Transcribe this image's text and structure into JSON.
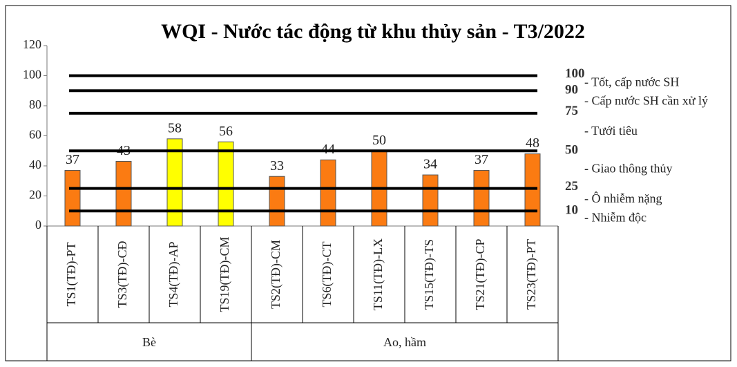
{
  "chart_data": {
    "type": "bar",
    "title": "WQI - Nước tác động từ khu thủy sản - T3/2022",
    "groups": [
      {
        "name": "Bè",
        "categories": [
          "TS1(TĐ)-PT",
          "TS3(TĐ)-CĐ",
          "TS4(TĐ)-AP",
          "TS19(TĐ)-CM"
        ]
      },
      {
        "name": "Ao, hầm",
        "categories": [
          "TS2(TĐ)-CM",
          "TS6(TĐ)-CT",
          "TS11(TĐ)-LX",
          "TS15(TĐ)-TS",
          "TS21(TĐ)-CP",
          "TS23(TĐ)-PT"
        ]
      }
    ],
    "values": [
      37,
      43,
      58,
      56,
      33,
      44,
      50,
      34,
      37,
      48
    ],
    "colors": [
      "#fb7b12",
      "#fb7b12",
      "#ffff00",
      "#ffff00",
      "#fb7b12",
      "#fb7b12",
      "#fb7b12",
      "#fb7b12",
      "#fb7b12",
      "#fb7b12"
    ],
    "ylim": [
      0,
      120
    ],
    "yticks": [
      0,
      20,
      40,
      60,
      80,
      100,
      120
    ],
    "thresholds": [
      100,
      90,
      75,
      50,
      25,
      10
    ],
    "zones": [
      "- Tốt, cấp nước SH",
      "- Cấp nước SH cần xử lý",
      "- Tưới tiêu",
      "- Giao thông thủy",
      "- Ô nhiễm nặng",
      "- Nhiễm độc"
    ]
  }
}
